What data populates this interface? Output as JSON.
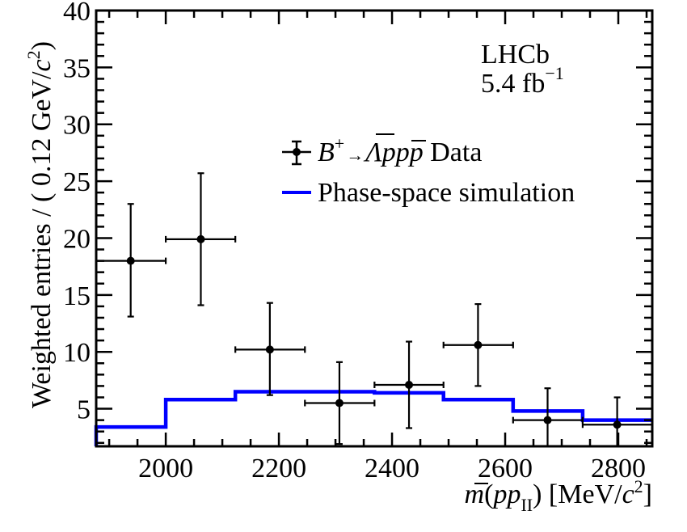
{
  "chart_data": {
    "type": "line",
    "title": "",
    "xlabel": "m(p̄p_II) [MeV/c²]",
    "xlabel_parts": {
      "m": "m",
      "open": "(",
      "pbar": "p",
      "p": "p",
      "sub": "II",
      "close": ")",
      "units": " [MeV/",
      "c": "c",
      "sup": "2",
      "end": "]"
    },
    "ylabel": "Weighted entries / ( 0.12 GeV/c² )",
    "ylabel_parts": {
      "main": "Weighted entries / ( 0.12 GeV/",
      "c": "c",
      "sup": "2",
      "end": ")"
    },
    "xlim": [
      1877,
      2860
    ],
    "ylim": [
      1.7,
      40
    ],
    "x_ticks": [
      2000,
      2200,
      2400,
      2600,
      2800
    ],
    "x_tick_labels": [
      "2000",
      "2200",
      "2400",
      "2600",
      "2800"
    ],
    "y_ticks": [
      5,
      10,
      15,
      20,
      25,
      30,
      35,
      40
    ],
    "y_tick_labels": [
      "5",
      "10",
      "15",
      "20",
      "25",
      "30",
      "35",
      "40"
    ],
    "grid": false,
    "bin_edges": [
      1877,
      2000,
      2123,
      2246,
      2369,
      2491,
      2614,
      2737,
      2860
    ],
    "series": [
      {
        "name": "B+ → Λ̄ p p̄ p Data",
        "kind": "errorbar",
        "color": "#000000",
        "x": [
          1938,
          2062,
          2184,
          2307,
          2430,
          2552,
          2675,
          2798
        ],
        "y": [
          18.0,
          19.9,
          10.2,
          5.5,
          7.1,
          10.6,
          4.0,
          3.6
        ],
        "y_err_up": [
          23.0,
          25.7,
          14.3,
          9.1,
          10.9,
          14.2,
          6.8,
          6.0
        ],
        "y_err_down": [
          13.1,
          14.1,
          6.2,
          1.9,
          3.3,
          7.0,
          1.7,
          1.7
        ]
      },
      {
        "name": "Phase-space simulation",
        "kind": "step",
        "color": "#0000ff",
        "values": [
          3.4,
          5.8,
          6.5,
          6.5,
          6.4,
          5.8,
          4.8,
          4.0
        ]
      }
    ],
    "legend": {
      "placement": "top-center",
      "data_label": {
        "B": "B",
        "plus": "+",
        "arrow": "→",
        "lambda": "Λ",
        "p1": "p",
        "p2": "p",
        "p3": "p",
        "data": " Data"
      },
      "sim_label": "Phase-space simulation"
    },
    "annotations": {
      "experiment": "LHCb",
      "lumi_value": "5.4 fb",
      "lumi_sup": "−1"
    }
  }
}
